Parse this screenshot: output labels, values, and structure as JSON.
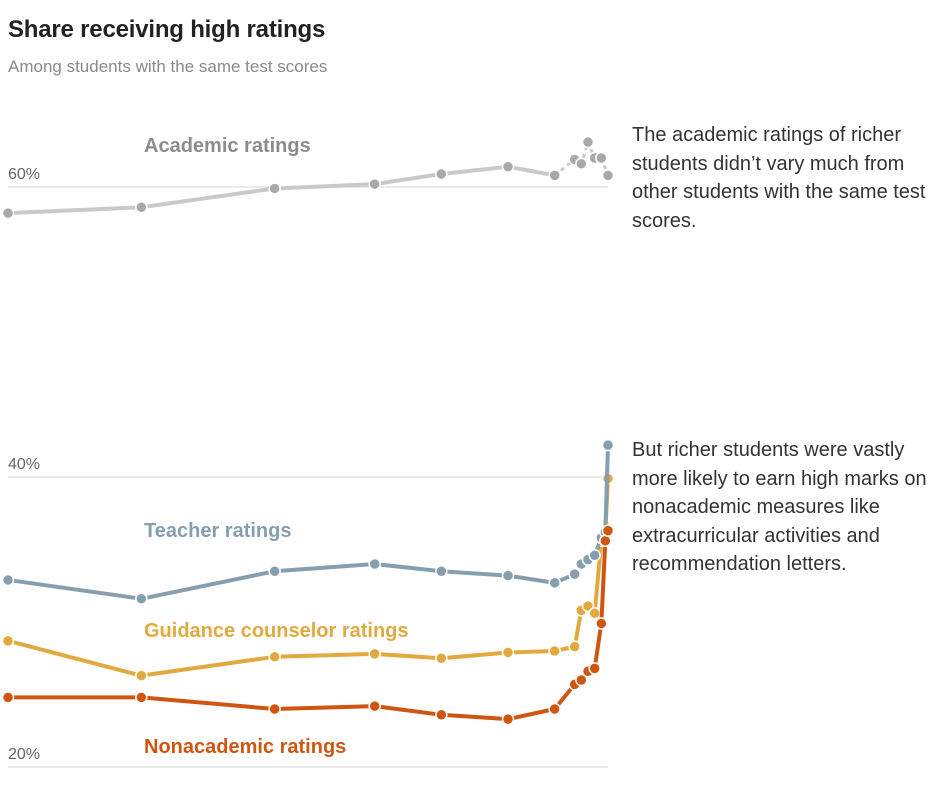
{
  "header": {
    "title": "Share receiving high ratings",
    "subtitle": "Among students with the same test scores"
  },
  "annotations": [
    "The academic ratings of richer students didn’t vary much from other students with the same test scores.",
    "But richer students were vastly more likely to earn high marks on nonacademic measures like extracurricular activities and recommendation letters."
  ],
  "colors": {
    "academic": "#c9c9c9",
    "academic_marker": "#a9a9a9",
    "teacher": "#869fae",
    "counselor": "#e2a93f",
    "nonacademic": "#cf5510",
    "grid": "#d6d6d6",
    "tick": "#666666"
  },
  "chart_data": {
    "type": "line",
    "title": "Share receiving high ratings",
    "subtitle": "Among students with the same test scores",
    "xlabel": "",
    "ylabel": "",
    "ylim": [
      20,
      60
    ],
    "yticks": [
      20,
      40,
      60
    ],
    "ytick_labels": [
      "20%",
      "40%",
      "60%"
    ],
    "grid": true,
    "legend": "direct labels",
    "x": [
      0,
      20,
      40,
      55,
      65,
      75,
      82,
      85,
      86,
      87,
      88,
      89,
      89.6,
      90
    ],
    "series": [
      {
        "name": "Academic ratings",
        "label_color": "#8c8c8c",
        "values": [
          58.2,
          58.6,
          59.9,
          60.2,
          60.9,
          61.4,
          60.8,
          61.9,
          61.6,
          63.1,
          62.0,
          62.0,
          null,
          60.8
        ],
        "dashed_from": 82
      },
      {
        "name": "Teacher ratings",
        "label_color": "#869fae",
        "values": [
          32.9,
          31.6,
          33.5,
          34.0,
          33.5,
          33.2,
          32.7,
          33.3,
          34.0,
          34.3,
          34.6,
          35.8,
          36.2,
          42.2
        ]
      },
      {
        "name": "Guidance counselor ratings",
        "label_color": "#e2a93f",
        "values": [
          28.7,
          26.3,
          27.6,
          27.8,
          27.5,
          27.9,
          28.0,
          28.3,
          30.8,
          31.1,
          30.6,
          35.6,
          36.2,
          39.9
        ]
      },
      {
        "name": "Nonacademic ratings",
        "label_color": "#cf5510",
        "values": [
          24.8,
          24.8,
          24.0,
          24.2,
          23.6,
          23.3,
          24.0,
          25.7,
          26.0,
          26.6,
          26.8,
          29.9,
          35.6,
          36.3
        ]
      }
    ]
  }
}
